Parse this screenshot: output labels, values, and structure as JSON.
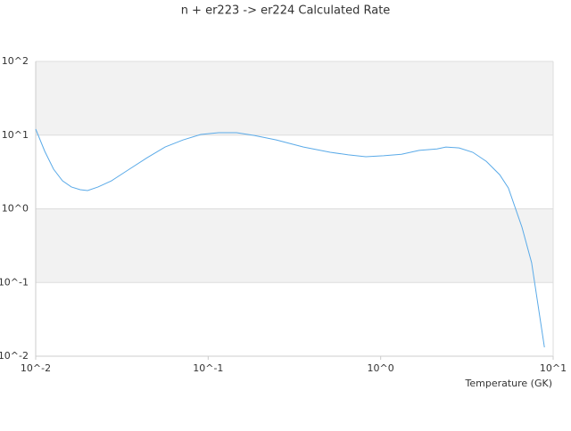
{
  "chart_data": {
    "type": "line",
    "title": "n + er223 -> er224 Calculated Rate",
    "x_label": "Temperature (GK)",
    "xscale": "log",
    "yscale": "log",
    "grid": true,
    "band_color": "#f2f2f2",
    "xlim": [
      0.01,
      10
    ],
    "ylim": [
      0.01,
      100
    ],
    "xticks": [
      {
        "value": 0.01,
        "label": "10^-2"
      },
      {
        "value": 0.1,
        "label": "10^-1"
      },
      {
        "value": 1,
        "label": "10^0"
      },
      {
        "value": 10,
        "label": "10^1"
      }
    ],
    "yticks": [
      {
        "value": 0.01,
        "label": "10^-2"
      },
      {
        "value": 0.1,
        "label": "10^-1"
      },
      {
        "value": 1,
        "label": "10^0"
      },
      {
        "value": 10,
        "label": "10^1"
      },
      {
        "value": 100,
        "label": "10^2"
      }
    ],
    "x": [
      0.01,
      0.0113,
      0.0127,
      0.0143,
      0.0161,
      0.0181,
      0.02,
      0.023,
      0.0275,
      0.0349,
      0.0443,
      0.0563,
      0.0714,
      0.0906,
      0.115,
      0.146,
      0.185,
      0.248,
      0.357,
      0.51,
      0.65,
      0.82,
      1.04,
      1.32,
      1.67,
      2.12,
      2.39,
      2.85,
      3.42,
      4.1,
      4.9,
      5.5,
      6.6,
      7.5,
      8.9
    ],
    "series": [
      {
        "color": "#5aaae8",
        "values": [
          12.1,
          6.0,
          3.45,
          2.4,
          1.98,
          1.82,
          1.77,
          1.98,
          2.4,
          3.45,
          4.95,
          6.9,
          8.6,
          10.2,
          10.8,
          10.8,
          9.9,
          8.6,
          6.9,
          5.85,
          5.4,
          5.1,
          5.25,
          5.5,
          6.2,
          6.5,
          6.9,
          6.7,
          5.85,
          4.4,
          2.9,
          1.92,
          0.56,
          0.186,
          0.0132
        ]
      }
    ]
  }
}
